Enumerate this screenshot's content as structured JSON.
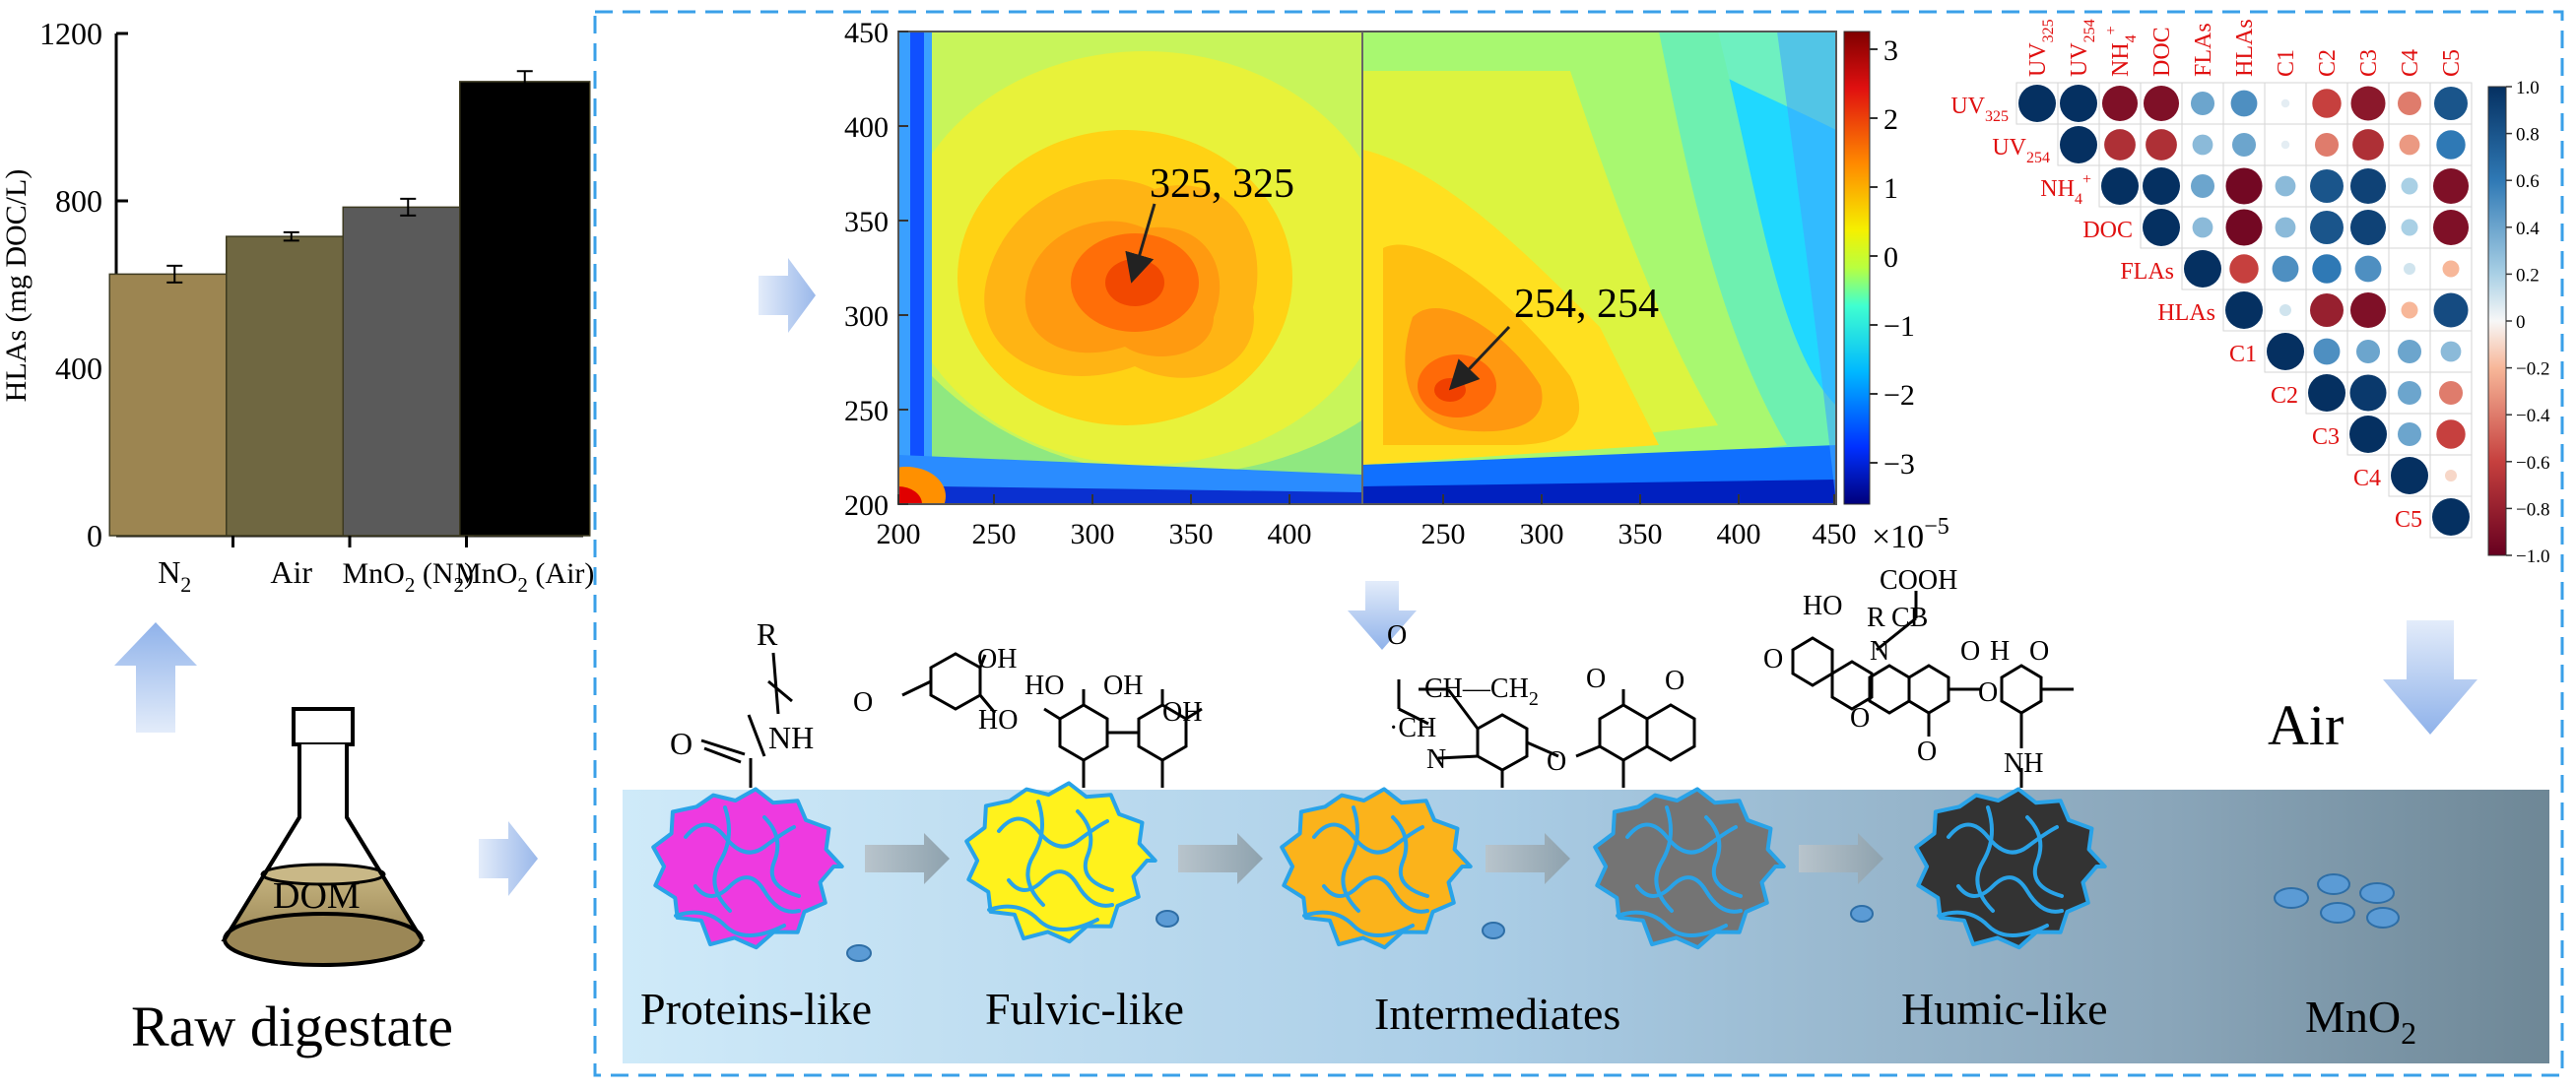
{
  "bar_chart": {
    "type": "bar",
    "ylabel": "HLAs (mg DOC/L)",
    "ylim": [
      0,
      1200
    ],
    "yticks": [
      "0",
      "400",
      "800",
      "1200"
    ],
    "categories": [
      "N2",
      "Air",
      "MnO2 (N2)",
      "MnO2 (Air)"
    ],
    "values": [
      625,
      715,
      785,
      1085
    ],
    "errors": [
      20,
      10,
      20,
      25
    ],
    "colors": [
      "#9c8551",
      "#6f6741",
      "#5a5a5a",
      "#000000"
    ],
    "tick_labels": {
      "n2": {
        "main": "N",
        "sub": "2"
      },
      "air": "Air",
      "mno2_n2": {
        "pre": "MnO",
        "sub": "2",
        "post": " (N",
        "sub2": "2",
        "end": ")"
      },
      "mno2_air": {
        "pre": "MnO",
        "sub": "2",
        "post": " (Air)"
      }
    }
  },
  "contour_chart": {
    "x_ticks": [
      "200",
      "250",
      "300",
      "350",
      "400",
      "250",
      "300",
      "350",
      "400",
      "450"
    ],
    "y_ticks": [
      "200",
      "250",
      "300",
      "350",
      "400",
      "450"
    ],
    "colorbar_ticks": [
      "3",
      "2",
      "1",
      "0",
      "−1",
      "−2",
      "−3"
    ],
    "colorbar_scale": "×10",
    "colorbar_exp": "−5",
    "peak_left": "325, 325",
    "peak_right": "254, 254"
  },
  "corr_matrix": {
    "row_labels": [
      {
        "main": "UV",
        "sub": "325"
      },
      {
        "main": "UV",
        "sub": "254"
      },
      {
        "main": "NH",
        "sub": "4",
        "sup": "+"
      },
      {
        "main": "DOC"
      },
      {
        "main": "FLAs"
      },
      {
        "main": "HLAs"
      },
      {
        "main": "C1"
      },
      {
        "main": "C2"
      },
      {
        "main": "C3"
      },
      {
        "main": "C4"
      },
      {
        "main": "C5"
      }
    ],
    "col_labels": [
      {
        "main": "UV",
        "sub": "325"
      },
      {
        "main": "UV",
        "sub": "254"
      },
      {
        "main": "NH",
        "sub": "4",
        "sup": "+"
      },
      {
        "main": "DOC"
      },
      {
        "main": "FLAs"
      },
      {
        "main": "HLAs"
      },
      {
        "main": "C1"
      },
      {
        "main": "C2"
      },
      {
        "main": "C3"
      },
      {
        "main": "C4"
      },
      {
        "main": "C5"
      }
    ],
    "values": [
      [
        1,
        1,
        -0.9,
        -0.9,
        0.4,
        0.5,
        0.05,
        -0.6,
        -0.85,
        -0.4,
        0.8
      ],
      [
        1,
        -0.7,
        -0.7,
        0.3,
        0.4,
        0.05,
        -0.4,
        -0.7,
        -0.3,
        0.6
      ],
      [
        1,
        1,
        0.4,
        -0.95,
        0.3,
        0.8,
        0.9,
        0.2,
        -0.9
      ],
      [
        1,
        0.3,
        -0.95,
        0.3,
        0.8,
        0.9,
        0.2,
        -0.9
      ],
      [
        1,
        -0.6,
        0.5,
        0.6,
        0.5,
        0.1,
        -0.2
      ],
      [
        1,
        0.1,
        -0.8,
        -0.9,
        -0.2,
        0.85
      ],
      [
        1,
        0.5,
        0.4,
        0.4,
        0.3
      ],
      [
        1,
        0.95,
        0.4,
        -0.4
      ],
      [
        1,
        0.4,
        -0.6
      ],
      [
        1,
        -0.1
      ],
      [
        1
      ]
    ],
    "scale_ticks": [
      "1.0",
      "0.8",
      "0.6",
      "0.4",
      "0.2",
      "0",
      "−0.2",
      "−0.4",
      "−0.6",
      "−0.8",
      "−1.0"
    ]
  },
  "flow": {
    "flask_label": "DOM",
    "raw_label": "Raw digestate",
    "air_label": "Air",
    "stages": [
      "Proteins-like",
      "Fulvic-like",
      "Intermediates",
      "Humic-like"
    ],
    "mno2": {
      "pre": "MnO",
      "sub": "2"
    },
    "blob_colors": [
      "#ee3ae0",
      "#fff21c",
      "#fbb31b",
      "#747474",
      "#333333"
    ]
  },
  "structures": {
    "protein": {
      "r": "R",
      "nh": "NH",
      "o": "O"
    },
    "fulvic": {
      "ho1": "HO",
      "ho2": "HO",
      "oh1": "OH",
      "oh2": "OH",
      "o": "O"
    },
    "inter": {
      "o": "O",
      "ch2a": "CH",
      "ch2b": "CH",
      "ch2sub": "2",
      "n": "N",
      "o2": "O",
      "o3": "O",
      "o4": "O"
    },
    "humic": {
      "cooh": "COOH",
      "r": "R",
      "cb": "CB",
      "ho": "HO",
      "o1": "O",
      "n": "N",
      "o2": "O",
      "h": "H",
      "o3": "O",
      "o4": "O",
      "o5": "O",
      "nh": "NH",
      "o6": "O"
    }
  }
}
